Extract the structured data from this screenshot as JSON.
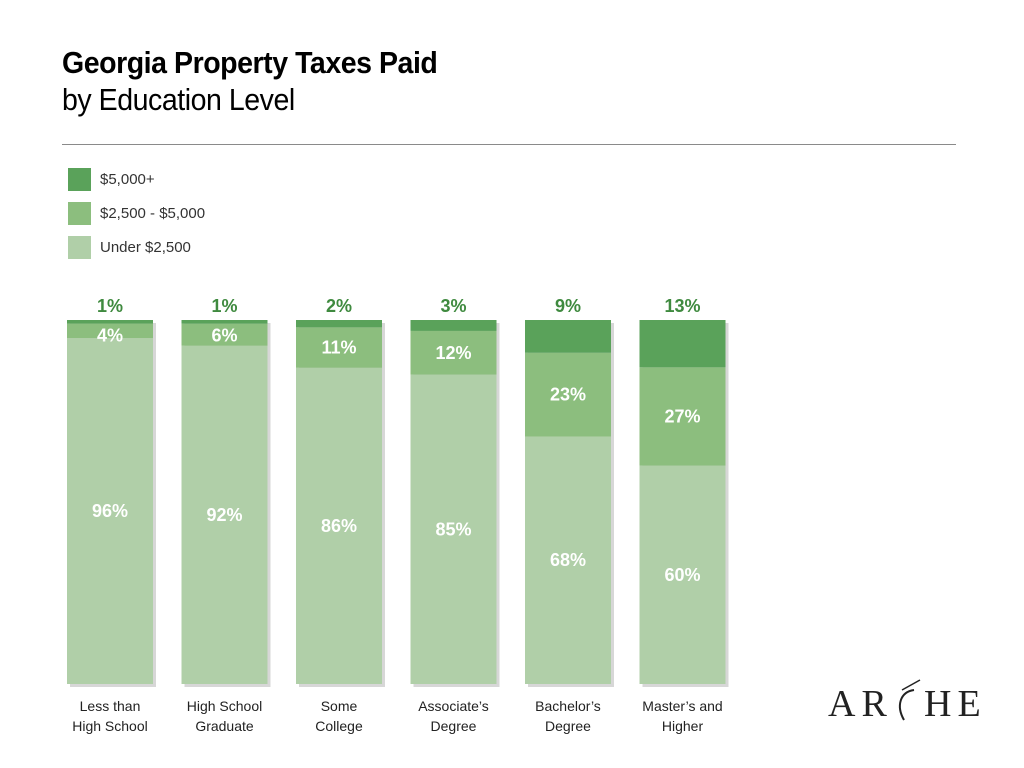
{
  "header": {
    "title": "Georgia Property Taxes Paid",
    "subtitle": "by Education Level"
  },
  "logo": {
    "text": "ARCHE"
  },
  "colors": {
    "top": "#5aa25a",
    "mid": "#8cbe7e",
    "base": "#b0cfa8",
    "label_dark": "#3f8a3f"
  },
  "chart_data": {
    "type": "bar",
    "stacked": true,
    "title": "Georgia Property Taxes Paid",
    "subtitle": "by Education Level",
    "categories": [
      "Less than High School",
      "High School Graduate",
      "Some College",
      "Associate’s Degree",
      "Bachelor’s Degree",
      "Master’s and Higher"
    ],
    "category_lines": [
      [
        "Less than",
        "High School"
      ],
      [
        "High School",
        "Graduate"
      ],
      [
        "Some",
        "College"
      ],
      [
        "Associate’s",
        "Degree"
      ],
      [
        "Bachelor’s",
        "Degree"
      ],
      [
        "Master’s and",
        "Higher"
      ]
    ],
    "series": [
      {
        "name": "Under $2,500",
        "values": [
          96,
          92,
          86,
          85,
          68,
          60
        ],
        "labels": [
          "96%",
          "92%",
          "86%",
          "85%",
          "68%",
          "60%"
        ]
      },
      {
        "name": "$2,500 - $5,000",
        "values": [
          4,
          6,
          11,
          12,
          23,
          27
        ],
        "labels": [
          "4%",
          "6%",
          "11%",
          "12%",
          "23%",
          "27%"
        ]
      },
      {
        "name": "$5,000+",
        "values": [
          1,
          1,
          2,
          3,
          9,
          13
        ],
        "labels": [
          "1%",
          "1%",
          "2%",
          "3%",
          "9%",
          "13%"
        ]
      }
    ],
    "legend": {
      "position": "top-left",
      "entries": [
        "$5,000+",
        "$2,500 - $5,000",
        "Under $2,500"
      ]
    },
    "ylim": [
      0,
      100
    ],
    "grid": false,
    "xlabel": "",
    "ylabel": ""
  }
}
